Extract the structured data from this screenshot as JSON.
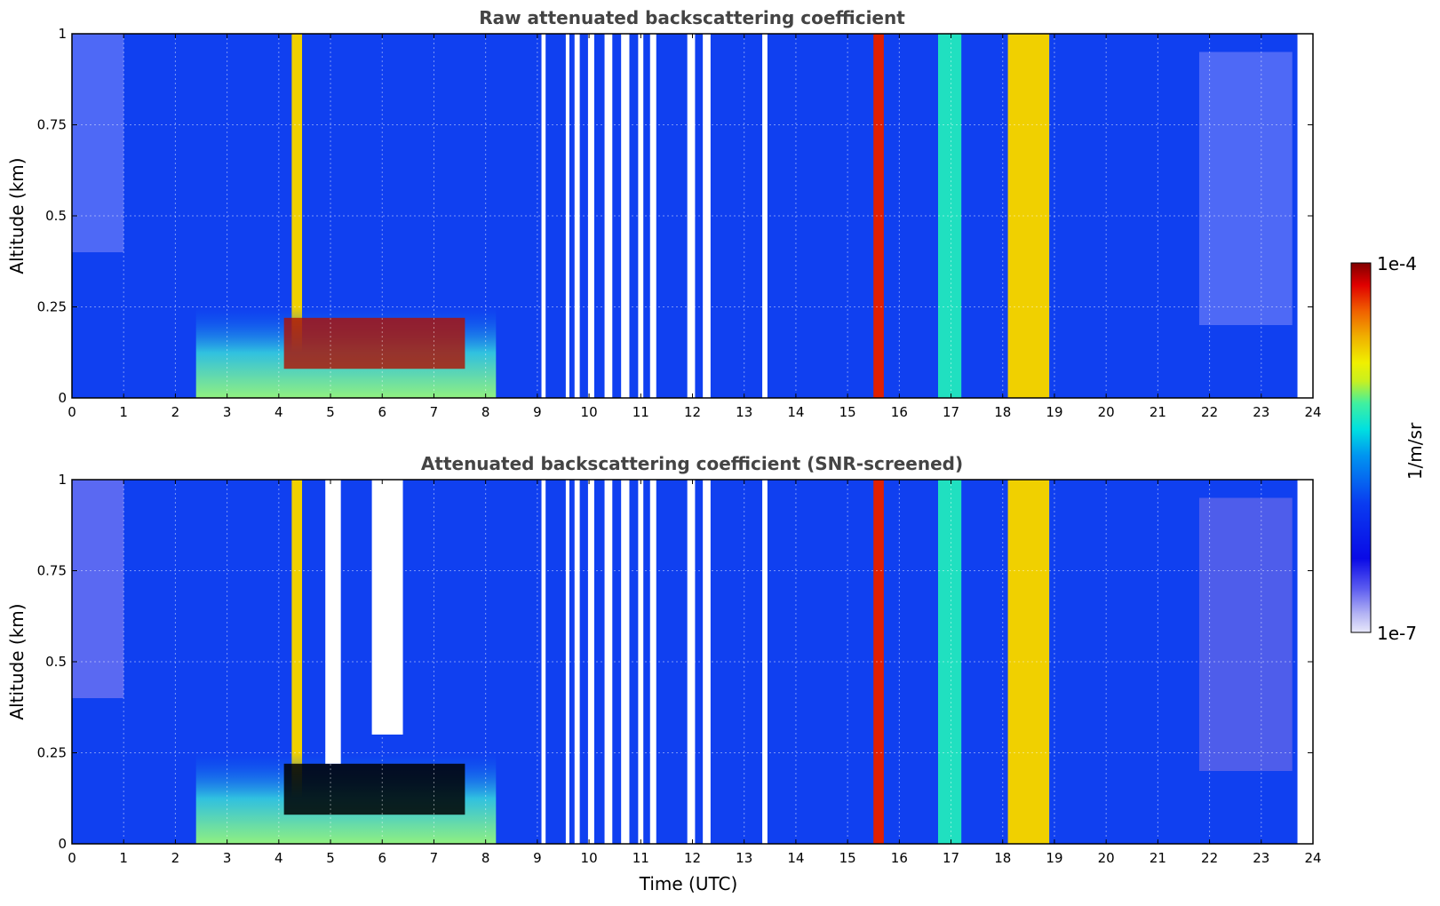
{
  "chart_data": [
    {
      "type": "heatmap",
      "title": "Raw attenuated backscattering coefficient",
      "xlabel": "",
      "ylabel": "Altitude (km)",
      "xlim": [
        0,
        24
      ],
      "ylim": [
        0,
        1
      ],
      "x_ticks": [
        "0",
        "1",
        "2",
        "3",
        "4",
        "5",
        "6",
        "7",
        "8",
        "9",
        "10",
        "11",
        "12",
        "13",
        "14",
        "15",
        "16",
        "17",
        "18",
        "19",
        "20",
        "21",
        "22",
        "23",
        "24"
      ],
      "y_ticks": [
        "0",
        "0.25",
        "0.5",
        "0.75",
        "1"
      ],
      "grid": true,
      "data_gaps": [
        [
          9.08,
          9.16
        ],
        [
          9.55,
          9.62
        ],
        [
          9.72,
          9.82
        ],
        [
          9.98,
          10.1
        ],
        [
          10.3,
          10.45
        ],
        [
          10.62,
          10.78
        ],
        [
          10.95,
          11.05
        ],
        [
          11.18,
          11.3
        ],
        [
          11.9,
          12.05
        ],
        [
          12.2,
          12.35
        ],
        [
          13.35,
          13.45
        ],
        [
          23.7,
          24.0
        ]
      ],
      "features": [
        {
          "type": "column",
          "x": [
            4.25,
            4.45
          ],
          "level": "high"
        },
        {
          "type": "column",
          "x": [
            15.5,
            15.7
          ],
          "level": "max"
        },
        {
          "type": "column",
          "x": [
            16.75,
            17.2
          ],
          "level": "medium"
        },
        {
          "type": "column",
          "x": [
            18.1,
            18.9
          ],
          "level": "high"
        },
        {
          "type": "boundary_layer",
          "x": [
            2.4,
            8.2
          ],
          "top_altitude_km": 0.25,
          "level": "medium"
        },
        {
          "type": "aerosol_layer",
          "x": [
            4.1,
            7.6
          ],
          "altitude_km": [
            0.08,
            0.22
          ],
          "level": "max"
        }
      ]
    },
    {
      "type": "heatmap",
      "title": "Attenuated backscattering coefficient (SNR-screened)",
      "xlabel": "Time (UTC)",
      "ylabel": "Altitude (km)",
      "xlim": [
        0,
        24
      ],
      "ylim": [
        0,
        1
      ],
      "x_ticks": [
        "0",
        "1",
        "2",
        "3",
        "4",
        "5",
        "6",
        "7",
        "8",
        "9",
        "10",
        "11",
        "12",
        "13",
        "14",
        "15",
        "16",
        "17",
        "18",
        "19",
        "20",
        "21",
        "22",
        "23",
        "24"
      ],
      "y_ticks": [
        "0",
        "0.25",
        "0.5",
        "0.75",
        "1"
      ],
      "grid": true,
      "data_gaps": [
        [
          9.08,
          9.16
        ],
        [
          9.55,
          9.62
        ],
        [
          9.72,
          9.82
        ],
        [
          9.98,
          10.1
        ],
        [
          10.3,
          10.45
        ],
        [
          10.62,
          10.78
        ],
        [
          10.95,
          11.05
        ],
        [
          11.18,
          11.3
        ],
        [
          11.9,
          12.05
        ],
        [
          12.2,
          12.35
        ],
        [
          13.35,
          13.45
        ],
        [
          23.7,
          24.0
        ]
      ],
      "screened_out_regions": [
        {
          "x": [
            4.9,
            5.2
          ],
          "altitude_km": [
            0.22,
            1.0
          ]
        },
        {
          "x": [
            5.8,
            6.4
          ],
          "altitude_km": [
            0.3,
            1.0
          ]
        }
      ],
      "features": [
        {
          "type": "column",
          "x": [
            4.25,
            4.45
          ],
          "level": "high"
        },
        {
          "type": "column",
          "x": [
            15.5,
            15.7
          ],
          "level": "max"
        },
        {
          "type": "column",
          "x": [
            16.75,
            17.2
          ],
          "level": "medium"
        },
        {
          "type": "column",
          "x": [
            18.1,
            18.9
          ],
          "level": "high"
        },
        {
          "type": "boundary_layer",
          "x": [
            2.4,
            8.2
          ],
          "top_altitude_km": 0.25,
          "level": "medium"
        },
        {
          "type": "saturated_layer",
          "x": [
            4.1,
            7.6
          ],
          "altitude_km": [
            0.08,
            0.22
          ],
          "color": "#000000"
        }
      ]
    }
  ],
  "colorbar": {
    "label": "1/m/sr",
    "max_label": "1e-4",
    "min_label": "1e-7",
    "scale": "log",
    "range": [
      1e-07,
      0.0001
    ],
    "colormap": [
      "#e8e8fa",
      "#b4b4f4",
      "#5a5af0",
      "#0a0ae6",
      "#0a3cf0",
      "#0096f0",
      "#00e0e0",
      "#40f0a0",
      "#c8f020",
      "#f0f000",
      "#f0b000",
      "#f06000",
      "#e00000",
      "#800000"
    ]
  }
}
